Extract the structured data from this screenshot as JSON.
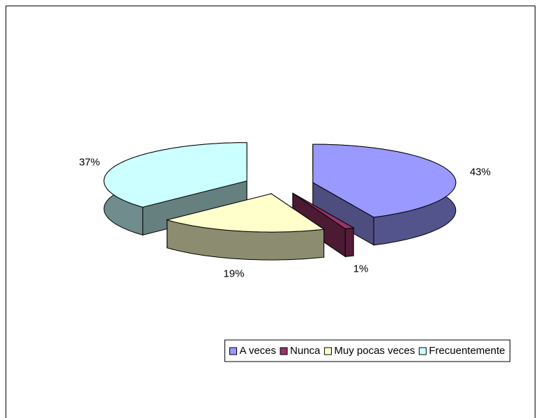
{
  "chart_data": {
    "type": "pie3d",
    "categories": [
      "A veces",
      "Nunca",
      "Muy pocas veces",
      "Frecuentemente"
    ],
    "values": [
      43,
      1,
      19,
      37
    ],
    "value_labels": [
      "43%",
      "1%",
      "19%",
      "37%"
    ],
    "colors": [
      "#9999ff",
      "#993366",
      "#ffffcc",
      "#ccffff"
    ],
    "legend": "bottom"
  }
}
